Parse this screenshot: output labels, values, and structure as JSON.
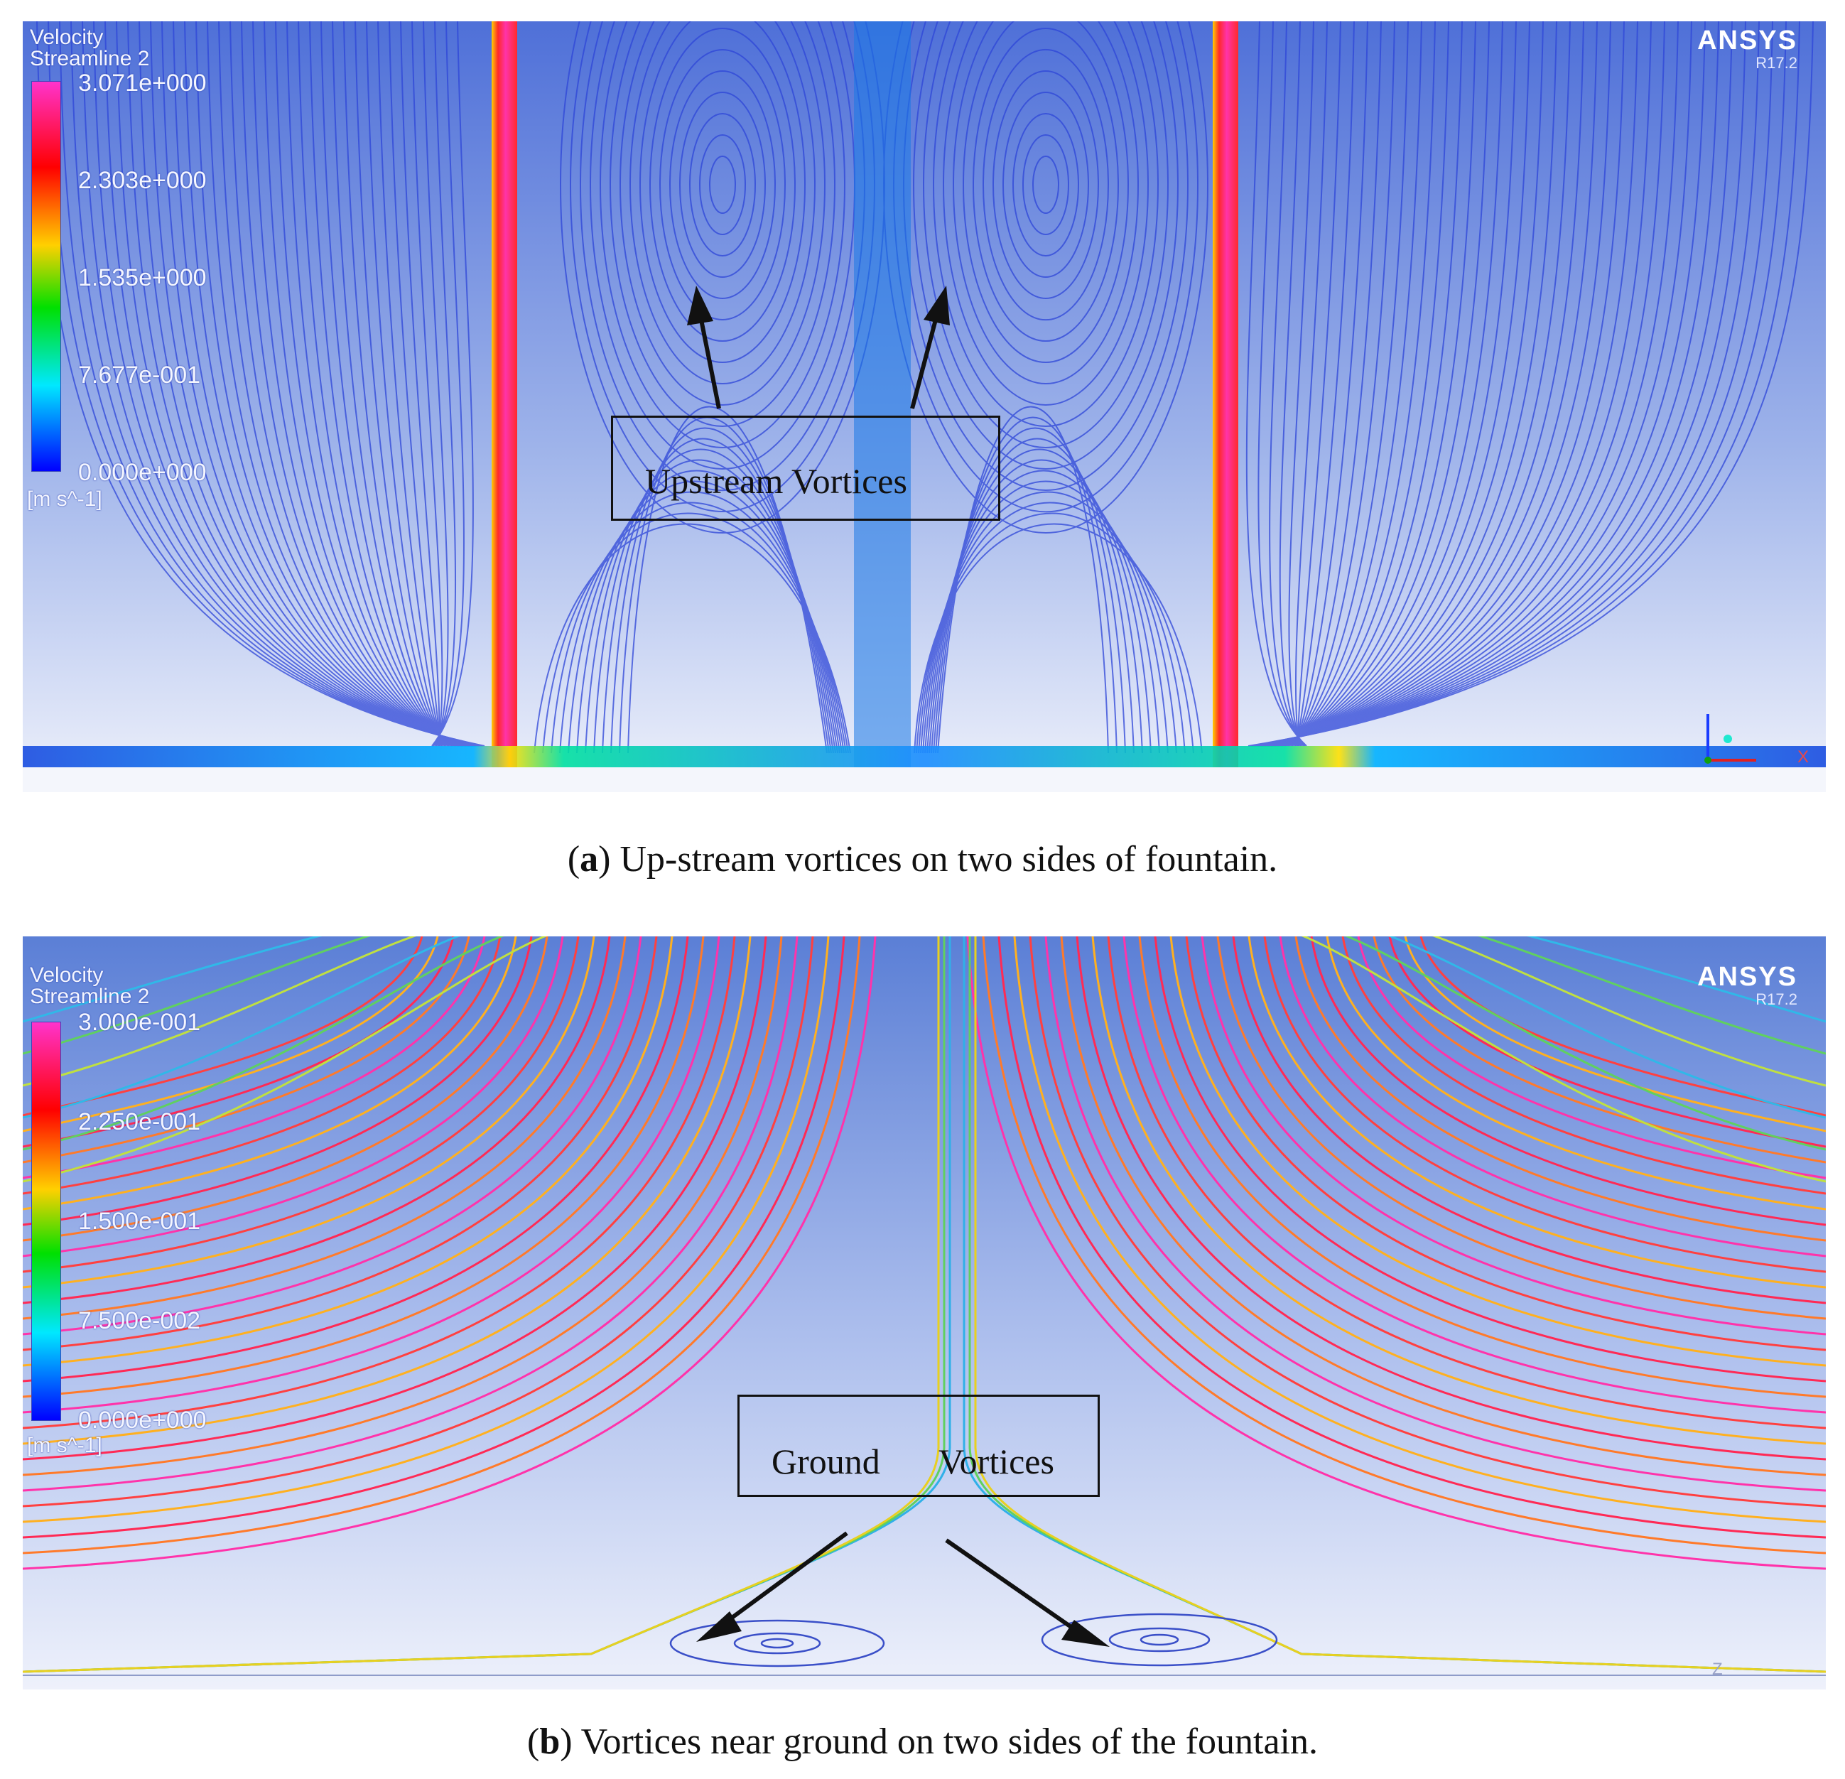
{
  "panel_a": {
    "legend_title_1": "Velocity",
    "legend_title_2": "Streamline 2",
    "ticks": [
      "3.071e+000",
      "2.303e+000",
      "1.535e+000",
      "7.677e-001",
      "0.000e+000"
    ],
    "unit": "[m s^-1]",
    "brand": "ANSYS",
    "version": "R17.2",
    "annotation": "Upstream Vortices",
    "axis_label": "X",
    "caption_letter": "a",
    "caption_text": ") Up-stream vortices on two sides of fountain."
  },
  "panel_b": {
    "legend_title_1": "Velocity",
    "legend_title_2": "Streamline 2",
    "ticks": [
      "3.000e-001",
      "2.250e-001",
      "1.500e-001",
      "7.500e-002",
      "0.000e+000"
    ],
    "unit": "[m s^-1]",
    "brand": "ANSYS",
    "version": "R17.2",
    "annotation_word_1": "Ground",
    "annotation_word_2": "Vortices",
    "axis_label": "Z",
    "caption_letter": "b",
    "caption_text": ") Vortices near ground on two sides of the fountain."
  },
  "colors": {
    "colormap": [
      "#ff33cc",
      "#ff0000",
      "#ffd000",
      "#00e000",
      "#00e8ff",
      "#0000ff"
    ],
    "streamline_blue": "#2e46d8",
    "background_top": "#5b7fd6",
    "background_bottom": "#eef1fb"
  }
}
